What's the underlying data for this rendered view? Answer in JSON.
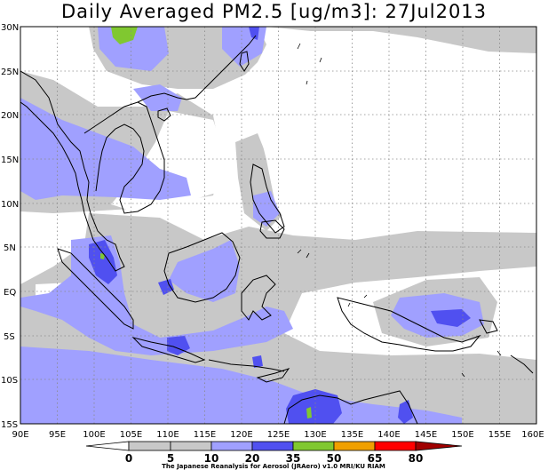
{
  "title": "Daily Averaged PM2.5 [ug/m3]: 27Jul2013",
  "credit": "The Japanese Reanalysis for Aerosol (JRAero) v1.0 MRI/KU RIAM",
  "map": {
    "lon_range": [
      90,
      160
    ],
    "lat_range": [
      -15,
      30
    ],
    "lon_ticks": [
      "90E",
      "95E",
      "100E",
      "105E",
      "110E",
      "115E",
      "120E",
      "125E",
      "130E",
      "135E",
      "140E",
      "145E",
      "150E",
      "155E",
      "160E"
    ],
    "lat_ticks": [
      "30N",
      "25N",
      "20N",
      "15N",
      "10N",
      "5N",
      "EQ",
      "5S",
      "10S",
      "15S"
    ],
    "grid": true,
    "colors": {
      "c5_10": "#c8c8c8",
      "c10_20": "#a0a0ff",
      "c20_35": "#5050f0",
      "c35_50": "#80c830",
      "coast": "#000000"
    }
  },
  "colorbar": {
    "levels": [
      "0",
      "5",
      "10",
      "20",
      "35",
      "50",
      "65",
      "80"
    ],
    "colors": [
      "#ffffff",
      "#c8c8c8",
      "#a0a0ff",
      "#5050f0",
      "#80c830",
      "#f0a000",
      "#ff0000",
      "#a00000"
    ]
  }
}
